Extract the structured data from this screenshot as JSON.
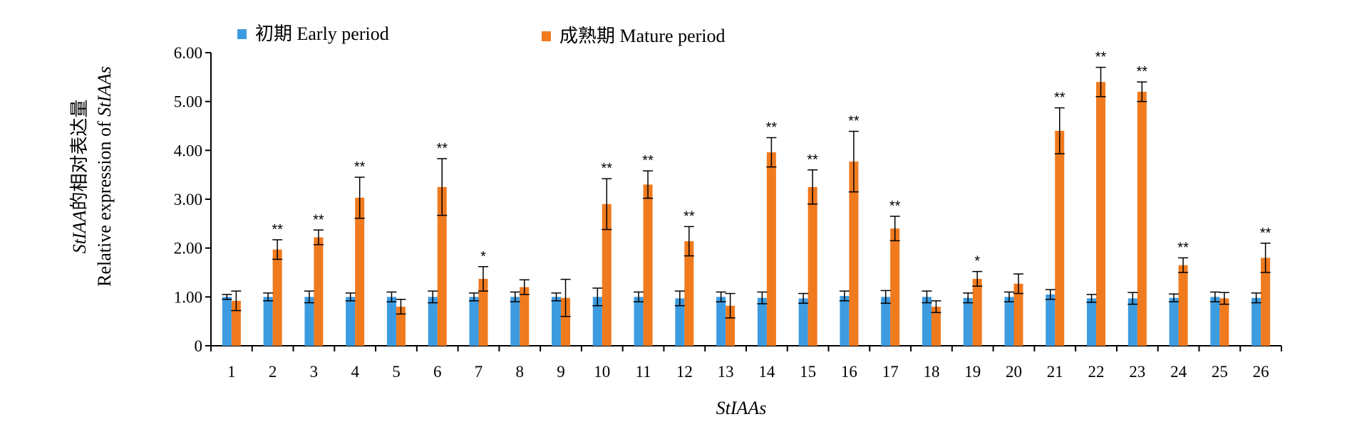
{
  "chart_data": {
    "type": "bar",
    "categories": [
      "1",
      "2",
      "3",
      "4",
      "5",
      "6",
      "7",
      "8",
      "9",
      "10",
      "11",
      "12",
      "13",
      "14",
      "15",
      "16",
      "17",
      "18",
      "19",
      "20",
      "21",
      "22",
      "23",
      "24",
      "25",
      "26"
    ],
    "series": [
      {
        "name": "初期 Early period",
        "color": "#3D9BE0",
        "values": [
          1.0,
          1.0,
          1.0,
          1.0,
          1.0,
          1.0,
          1.0,
          1.0,
          1.0,
          1.0,
          1.0,
          0.97,
          1.0,
          0.98,
          0.97,
          1.02,
          1.0,
          1.0,
          0.98,
          1.0,
          1.05,
          0.97,
          0.97,
          0.98,
          1.0,
          0.98
        ],
        "errors": [
          0.05,
          0.08,
          0.12,
          0.08,
          0.1,
          0.12,
          0.08,
          0.1,
          0.08,
          0.18,
          0.1,
          0.15,
          0.1,
          0.12,
          0.1,
          0.1,
          0.13,
          0.12,
          0.1,
          0.1,
          0.1,
          0.08,
          0.12,
          0.08,
          0.1,
          0.1
        ]
      },
      {
        "name": "成熟期 Mature period",
        "color": "#F07A1E",
        "values": [
          0.92,
          1.97,
          2.22,
          3.03,
          0.8,
          3.25,
          1.37,
          1.2,
          0.98,
          2.9,
          3.3,
          2.14,
          0.82,
          3.96,
          3.25,
          3.77,
          2.4,
          0.8,
          1.37,
          1.27,
          4.4,
          5.4,
          5.2,
          1.65,
          0.97,
          1.8
        ],
        "errors": [
          0.2,
          0.2,
          0.15,
          0.42,
          0.15,
          0.58,
          0.25,
          0.15,
          0.38,
          0.52,
          0.28,
          0.3,
          0.25,
          0.3,
          0.35,
          0.62,
          0.25,
          0.12,
          0.15,
          0.2,
          0.47,
          0.3,
          0.2,
          0.15,
          0.12,
          0.3
        ],
        "significance": [
          "",
          "**",
          "**",
          "**",
          "",
          "**",
          "*",
          "",
          "",
          "**",
          "**",
          "**",
          "",
          "**",
          "**",
          "**",
          "**",
          "",
          "*",
          "",
          "**",
          "**",
          "**",
          "**",
          "",
          "**"
        ]
      }
    ],
    "ylim": [
      0,
      6
    ],
    "yticks": [
      "0",
      "1.00",
      "2.00",
      "3.00",
      "4.00",
      "5.00",
      "6.00"
    ],
    "ylabel_cn": "的相对表达量",
    "ylabel_italic": "StIAA",
    "ylabel_en_prefix": "Relative expression of ",
    "ylabel_en_italic": "StIAAs",
    "xlabel": "StIAAs",
    "legend_position": "top-left",
    "grid": false
  }
}
